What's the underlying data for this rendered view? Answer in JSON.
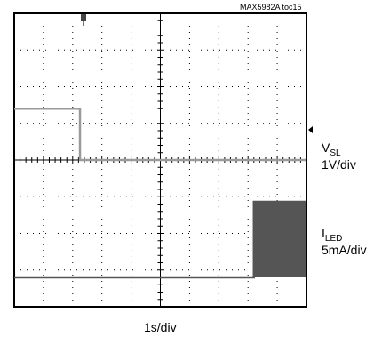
{
  "figure_id": "MAX5982A toc15",
  "channels": [
    {
      "name": "V",
      "subscript": "SL",
      "overline": true,
      "scale": "1V/div"
    },
    {
      "name": "I",
      "subscript": "LED",
      "overline": false,
      "scale": "5mA/div"
    }
  ],
  "time_scale": "1s/div",
  "colors": {
    "trace_vsl": "#9a9a9a",
    "trace_iled": "#555555",
    "grid": "#000000",
    "background": "#ffffff"
  },
  "chart_data": {
    "type": "line",
    "x_divisions": 10,
    "y_divisions": 8,
    "x_unit": "s",
    "grid": true,
    "series": [
      {
        "name": "V_SL",
        "units": "V",
        "x": [
          0,
          2.25,
          2.25,
          10
        ],
        "y": [
          1.4,
          1.4,
          0.0,
          0.0
        ]
      },
      {
        "name": "I_LED",
        "units": "mA",
        "x": [
          0,
          8.2,
          8.2,
          10
        ],
        "y": [
          0.0,
          0.0,
          10.3,
          10.3
        ],
        "pwm_band": {
          "x_start": 8.2,
          "x_end": 10,
          "low": 0.0,
          "high": 10.3
        }
      }
    ]
  }
}
